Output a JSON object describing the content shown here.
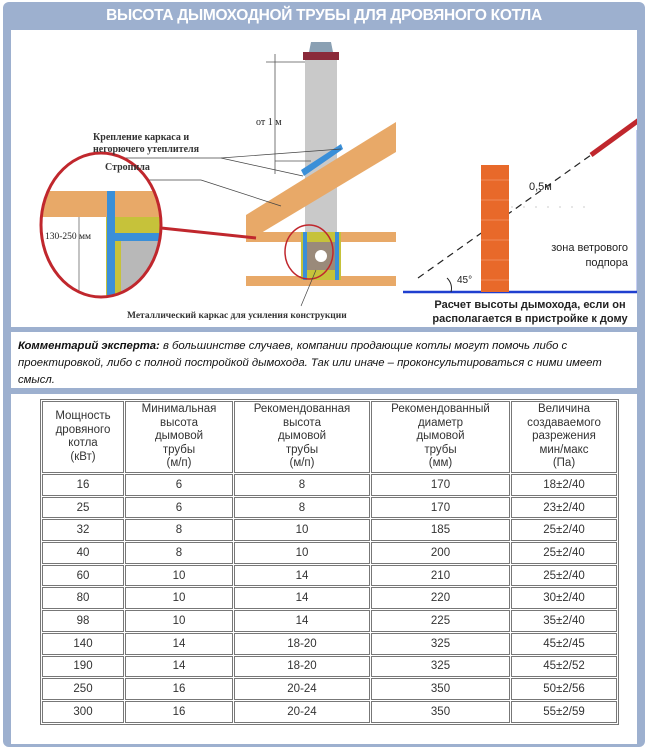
{
  "title": "ВЫСОТА ДЫМОХОДНОЙ ТРУБЫ ДЛЯ ДРОВЯНОГО КОТЛА",
  "diagram_left": {
    "label_height": "от 1 м",
    "label_fastening_1": "Крепление каркаса и",
    "label_fastening_2": "негорючего утеплителя",
    "label_rafters": "Стропила",
    "label_gap": "130-250 мм",
    "label_frame": "Металлический каркас для усиления конструкции"
  },
  "diagram_right": {
    "label_half_m": "0,5м",
    "label_angle": "45°",
    "label_zone_1": "зона ветрового",
    "label_zone_2": "подпора",
    "caption_1": "Расчет высоты дымохода, если он",
    "caption_2": "располагается в пристройке к дому"
  },
  "comment": {
    "lead": "Комментарий эксперта:",
    "text": " в большинстве случаев, компании продающие котлы могут помочь либо с проектировкой, либо с полной постройкой дымохода. Так или иначе – проконсультироваться с ними имеет смысл."
  },
  "table": {
    "headers": [
      [
        "Мощность",
        "дровяного",
        "котла",
        "(кВт)"
      ],
      [
        "Минимальная",
        "высота",
        "дымовой",
        "трубы",
        "(м/п)"
      ],
      [
        "Рекомендованная",
        "высота",
        "дымовой",
        "трубы",
        "(м/п)"
      ],
      [
        "Рекомендованный",
        "диаметр",
        "дымовой",
        "трубы",
        "(мм)"
      ],
      [
        "Величина",
        "создаваемого",
        "разрежения",
        "мин/макс",
        "(Па)"
      ]
    ],
    "rows": [
      [
        "16",
        "6",
        "8",
        "170",
        "18±2/40"
      ],
      [
        "25",
        "6",
        "8",
        "170",
        "23±2/40"
      ],
      [
        "32",
        "8",
        "10",
        "185",
        "25±2/40"
      ],
      [
        "40",
        "8",
        "10",
        "200",
        "25±2/40"
      ],
      [
        "60",
        "10",
        "14",
        "210",
        "25±2/40"
      ],
      [
        "80",
        "10",
        "14",
        "220",
        "30±2/40"
      ],
      [
        "98",
        "10",
        "14",
        "225",
        "35±2/40"
      ],
      [
        "140",
        "14",
        "18-20",
        "325",
        "45±2/45"
      ],
      [
        "190",
        "14",
        "18-20",
        "325",
        "45±2/52"
      ],
      [
        "250",
        "16",
        "20-24",
        "350",
        "50±2/56"
      ],
      [
        "300",
        "16",
        "20-24",
        "350",
        "55±2/59"
      ]
    ]
  },
  "colors": {
    "frame": "#9db0cf",
    "circle": "#c0272d",
    "wood": "#e8a968",
    "steel": "#3a8fd8",
    "brick": "#e8692a",
    "ground": "#1f3fcf"
  }
}
